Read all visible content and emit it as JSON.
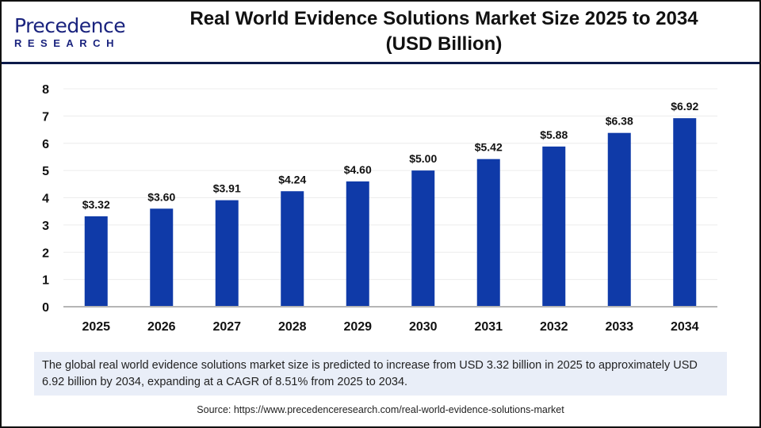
{
  "logo": {
    "line1": "Precedence",
    "line2": "RESEARCH"
  },
  "title_line1": "Real World Evidence Solutions Market Size 2025 to 2034",
  "title_line2": "(USD Billion)",
  "colors": {
    "bar": "#0f3aa8",
    "header_rule": "#0d1a4a",
    "desc_bg": "#e9eef8"
  },
  "chart_data": {
    "type": "bar",
    "title": "Real World Evidence Solutions Market Size 2025 to 2034 (USD Billion)",
    "categories": [
      "2025",
      "2026",
      "2027",
      "2028",
      "2029",
      "2030",
      "2031",
      "2032",
      "2033",
      "2034"
    ],
    "values": [
      3.32,
      3.6,
      3.91,
      4.24,
      4.6,
      5.0,
      5.42,
      5.88,
      6.38,
      6.92
    ],
    "data_labels": [
      "$3.32",
      "$3.60",
      "$3.91",
      "$4.24",
      "$4.60",
      "$5.00",
      "$5.42",
      "$5.88",
      "$6.38",
      "$6.92"
    ],
    "yticks": [
      "0",
      "1",
      "2",
      "3",
      "4",
      "5",
      "6",
      "7",
      "8"
    ],
    "ylim": [
      0,
      8
    ],
    "grid": true,
    "xlabel": "",
    "ylabel": ""
  },
  "description": "The global real world evidence solutions market size is predicted to increase from USD 3.32 billion in 2025 to approximately USD 6.92 billion by 2034, expanding at a CAGR of 8.51% from 2025 to 2034.",
  "source": "Source: https://www.precedenceresearch.com/real-world-evidence-solutions-market"
}
